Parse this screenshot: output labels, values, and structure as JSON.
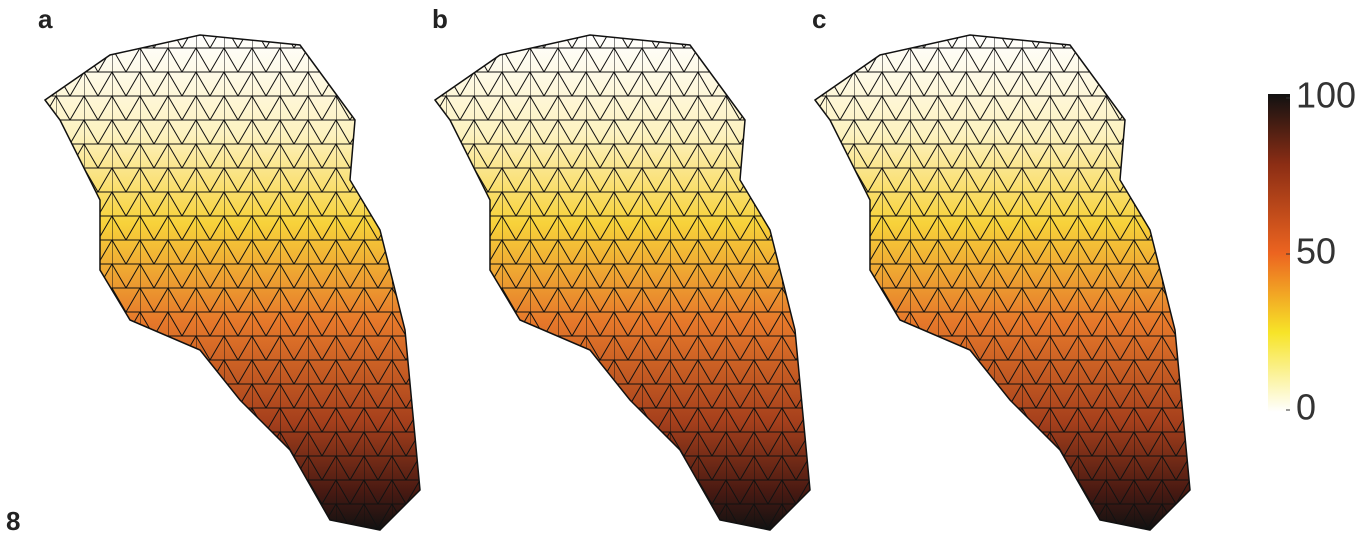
{
  "figure_number": "8",
  "panels": [
    {
      "label": "a"
    },
    {
      "label": "b"
    },
    {
      "label": "c"
    }
  ],
  "colorbar": {
    "lim": [
      0,
      100
    ],
    "ticks": [
      0,
      50,
      100
    ]
  }
}
